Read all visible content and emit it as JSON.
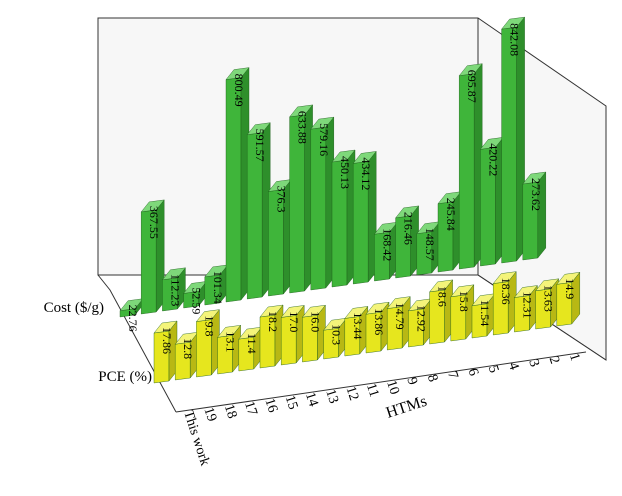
{
  "chart_data": {
    "type": "bar",
    "title": "",
    "xlabel": "HTMs",
    "categories": [
      "This work",
      "19",
      "18",
      "17",
      "16",
      "15",
      "14",
      "13",
      "12",
      "11",
      "10",
      "9",
      "8",
      "7",
      "6",
      "5",
      "4",
      "3",
      "2",
      "1"
    ],
    "series": [
      {
        "name": "Cost ($/g)",
        "values": [
          22.76,
          367.55,
          112.23,
          52.59,
          101.34,
          800.49,
          591.57,
          376.3,
          633.88,
          579.16,
          450.13,
          434.12,
          168.42,
          216.46,
          148.57,
          245.84,
          695.87,
          420.22,
          842.08,
          273.62
        ],
        "labels": [
          "22.76",
          "367.55",
          "112.23",
          "52.59",
          "101.34",
          "800.49",
          "591.57",
          "376.3",
          "633.88",
          "579.16",
          "450.13",
          "434.12",
          "168.42",
          "216.46",
          "148.57",
          "245.84",
          "695.87",
          "420.22",
          "842.08",
          "273.62"
        ]
      },
      {
        "name": "PCE (%)",
        "values": [
          17.86,
          12.8,
          19.8,
          13.1,
          11.4,
          18.2,
          17.0,
          16.0,
          10.3,
          13.44,
          13.86,
          14.79,
          12.92,
          18.6,
          15.8,
          11.54,
          18.36,
          12.31,
          13.63,
          14.9
        ],
        "labels": [
          "17.86",
          "12.8",
          "19.8",
          "13.1",
          "11.4",
          "18.2",
          "17.0",
          "16.0",
          "10.3",
          "13.44",
          "13.86",
          "14.79",
          "12.92",
          "18.6",
          "15.8",
          "11.54",
          "18.36",
          "12.31",
          "13.63",
          "14.9"
        ]
      }
    ],
    "colors": {
      "cost": "#3fb53a",
      "pce": "#e6e61e"
    },
    "grid": false,
    "projection": "3d"
  }
}
